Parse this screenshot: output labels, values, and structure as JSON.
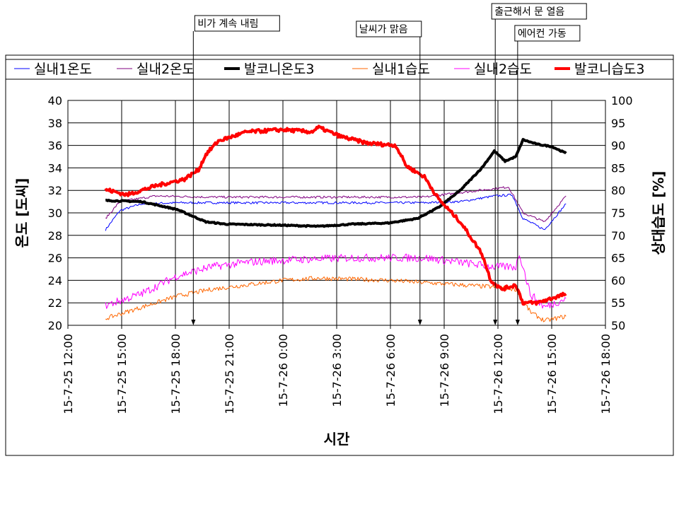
{
  "chart_data": {
    "type": "line",
    "xlabel": "시간",
    "ylabel_left": "온도 [도씨]",
    "ylabel_right": "상대습도 [%]",
    "x_unit": "hours since 15-7-25 12:00",
    "xlim": [
      0,
      30
    ],
    "ylim_left": [
      20,
      40
    ],
    "ylim_right": [
      50,
      100
    ],
    "grid": true,
    "legend_position": "top",
    "x_ticks": [
      {
        "v": 0,
        "label": "15-7-25 12:00"
      },
      {
        "v": 3,
        "label": "15-7-25 15:00"
      },
      {
        "v": 6,
        "label": "15-7-25 18:00"
      },
      {
        "v": 9,
        "label": "15-7-25 21:00"
      },
      {
        "v": 12,
        "label": "15-7-26 0:00"
      },
      {
        "v": 15,
        "label": "15-7-26 3:00"
      },
      {
        "v": 18,
        "label": "15-7-26 6:00"
      },
      {
        "v": 21,
        "label": "15-7-26 9:00"
      },
      {
        "v": 24,
        "label": "15-7-26 12:00"
      },
      {
        "v": 27,
        "label": "15-7-26 15:00"
      },
      {
        "v": 30,
        "label": "15-7-26 18:00"
      }
    ],
    "y_ticks_left": [
      "20",
      "22",
      "24",
      "26",
      "28",
      "30",
      "32",
      "34",
      "36",
      "38",
      "40"
    ],
    "y_ticks_right": [
      "50",
      "55",
      "60",
      "65",
      "70",
      "75",
      "80",
      "85",
      "90",
      "95",
      "100"
    ],
    "series": [
      {
        "name": "실내1온도",
        "axis": "left",
        "color": "#0000ff",
        "width": 1,
        "noise": 0.1,
        "points": [
          [
            2.1,
            28.5
          ],
          [
            2.9,
            30.2
          ],
          [
            4.1,
            30.8
          ],
          [
            6.1,
            30.9
          ],
          [
            8,
            30.9
          ],
          [
            14,
            30.9
          ],
          [
            19.9,
            30.9
          ],
          [
            21.9,
            31.0
          ],
          [
            23.8,
            31.5
          ],
          [
            24.8,
            31.6
          ],
          [
            25.4,
            29.5
          ],
          [
            26.6,
            28.5
          ],
          [
            27.8,
            30.8
          ]
        ]
      },
      {
        "name": "실내2온도",
        "axis": "left",
        "color": "#800080",
        "width": 1,
        "noise": 0.1,
        "points": [
          [
            2.1,
            29.5
          ],
          [
            2.9,
            31.0
          ],
          [
            4.9,
            31.5
          ],
          [
            8,
            31.4
          ],
          [
            14,
            31.4
          ],
          [
            19.9,
            31.4
          ],
          [
            21.9,
            31.8
          ],
          [
            24.6,
            32.3
          ],
          [
            25.4,
            30.0
          ],
          [
            26.6,
            29.2
          ],
          [
            27.8,
            31.5
          ]
        ]
      },
      {
        "name": "발코니온도3",
        "axis": "left",
        "color": "#000000",
        "width": 4,
        "noise": 0.05,
        "points": [
          [
            2.1,
            31.1
          ],
          [
            4.1,
            31.0
          ],
          [
            6.1,
            30.3
          ],
          [
            7.7,
            29.2
          ],
          [
            8.8,
            29.0
          ],
          [
            12.0,
            28.9
          ],
          [
            14.0,
            28.8
          ],
          [
            15.9,
            29.0
          ],
          [
            17.9,
            29.1
          ],
          [
            19.5,
            29.5
          ],
          [
            20.7,
            30.5
          ],
          [
            21.9,
            32.0
          ],
          [
            23.1,
            34.0
          ],
          [
            23.8,
            35.5
          ],
          [
            24.4,
            34.6
          ],
          [
            25.0,
            35.0
          ],
          [
            25.4,
            36.5
          ],
          [
            26.2,
            36.1
          ],
          [
            27.0,
            35.9
          ],
          [
            27.8,
            35.3
          ]
        ]
      },
      {
        "name": "실내1습도",
        "axis": "right",
        "color": "#ff6600",
        "width": 1,
        "noise": 0.5,
        "points": [
          [
            2.1,
            51.5
          ],
          [
            4.1,
            54
          ],
          [
            6.1,
            56.5
          ],
          [
            8,
            58
          ],
          [
            10,
            59
          ],
          [
            12,
            60
          ],
          [
            14,
            60.5
          ],
          [
            17.9,
            60
          ],
          [
            19.9,
            59.5
          ],
          [
            23.8,
            58.5
          ],
          [
            25.0,
            58
          ],
          [
            25.8,
            53
          ],
          [
            26.6,
            51
          ],
          [
            27.8,
            52
          ]
        ]
      },
      {
        "name": "실내2습도",
        "axis": "right",
        "color": "#ff00ff",
        "width": 1,
        "noise": 0.9,
        "points": [
          [
            2.1,
            54.4
          ],
          [
            4.1,
            57
          ],
          [
            6.1,
            61
          ],
          [
            8,
            63
          ],
          [
            10,
            64
          ],
          [
            12,
            64.5
          ],
          [
            15.9,
            65
          ],
          [
            19.9,
            65
          ],
          [
            21.9,
            64
          ],
          [
            23.8,
            63
          ],
          [
            25.0,
            63
          ],
          [
            25.2,
            66
          ],
          [
            25.8,
            57
          ],
          [
            26.6,
            54
          ],
          [
            27.8,
            56
          ]
        ]
      },
      {
        "name": "발코니습도3",
        "axis": "right",
        "color": "#ff0000",
        "width": 4,
        "noise": 0.4,
        "points": [
          [
            2.1,
            80.2
          ],
          [
            3.3,
            79
          ],
          [
            4.9,
            81
          ],
          [
            6.5,
            82.5
          ],
          [
            7.3,
            84.6
          ],
          [
            7.7,
            88
          ],
          [
            8.4,
            91
          ],
          [
            10.0,
            93
          ],
          [
            12.0,
            93.5
          ],
          [
            13.6,
            93
          ],
          [
            14.0,
            94
          ],
          [
            15.2,
            92
          ],
          [
            16.7,
            90.5
          ],
          [
            18.3,
            90
          ],
          [
            18.9,
            85.4
          ],
          [
            19.9,
            83
          ],
          [
            20.7,
            78
          ],
          [
            21.9,
            73
          ],
          [
            23.1,
            66
          ],
          [
            23.6,
            60
          ],
          [
            24.2,
            58
          ],
          [
            25.0,
            59
          ],
          [
            25.4,
            55
          ],
          [
            26.2,
            55
          ],
          [
            27.0,
            56
          ],
          [
            27.8,
            57
          ]
        ]
      }
    ],
    "annotations": [
      {
        "text": "비가 계속 내림",
        "x": 7.0
      },
      {
        "text": "날씨가 맑음",
        "x": 19.65
      },
      {
        "text": "출근해서 문 열음",
        "x": 23.85
      },
      {
        "text": "에어컨 가동",
        "x": 25.1
      }
    ]
  }
}
